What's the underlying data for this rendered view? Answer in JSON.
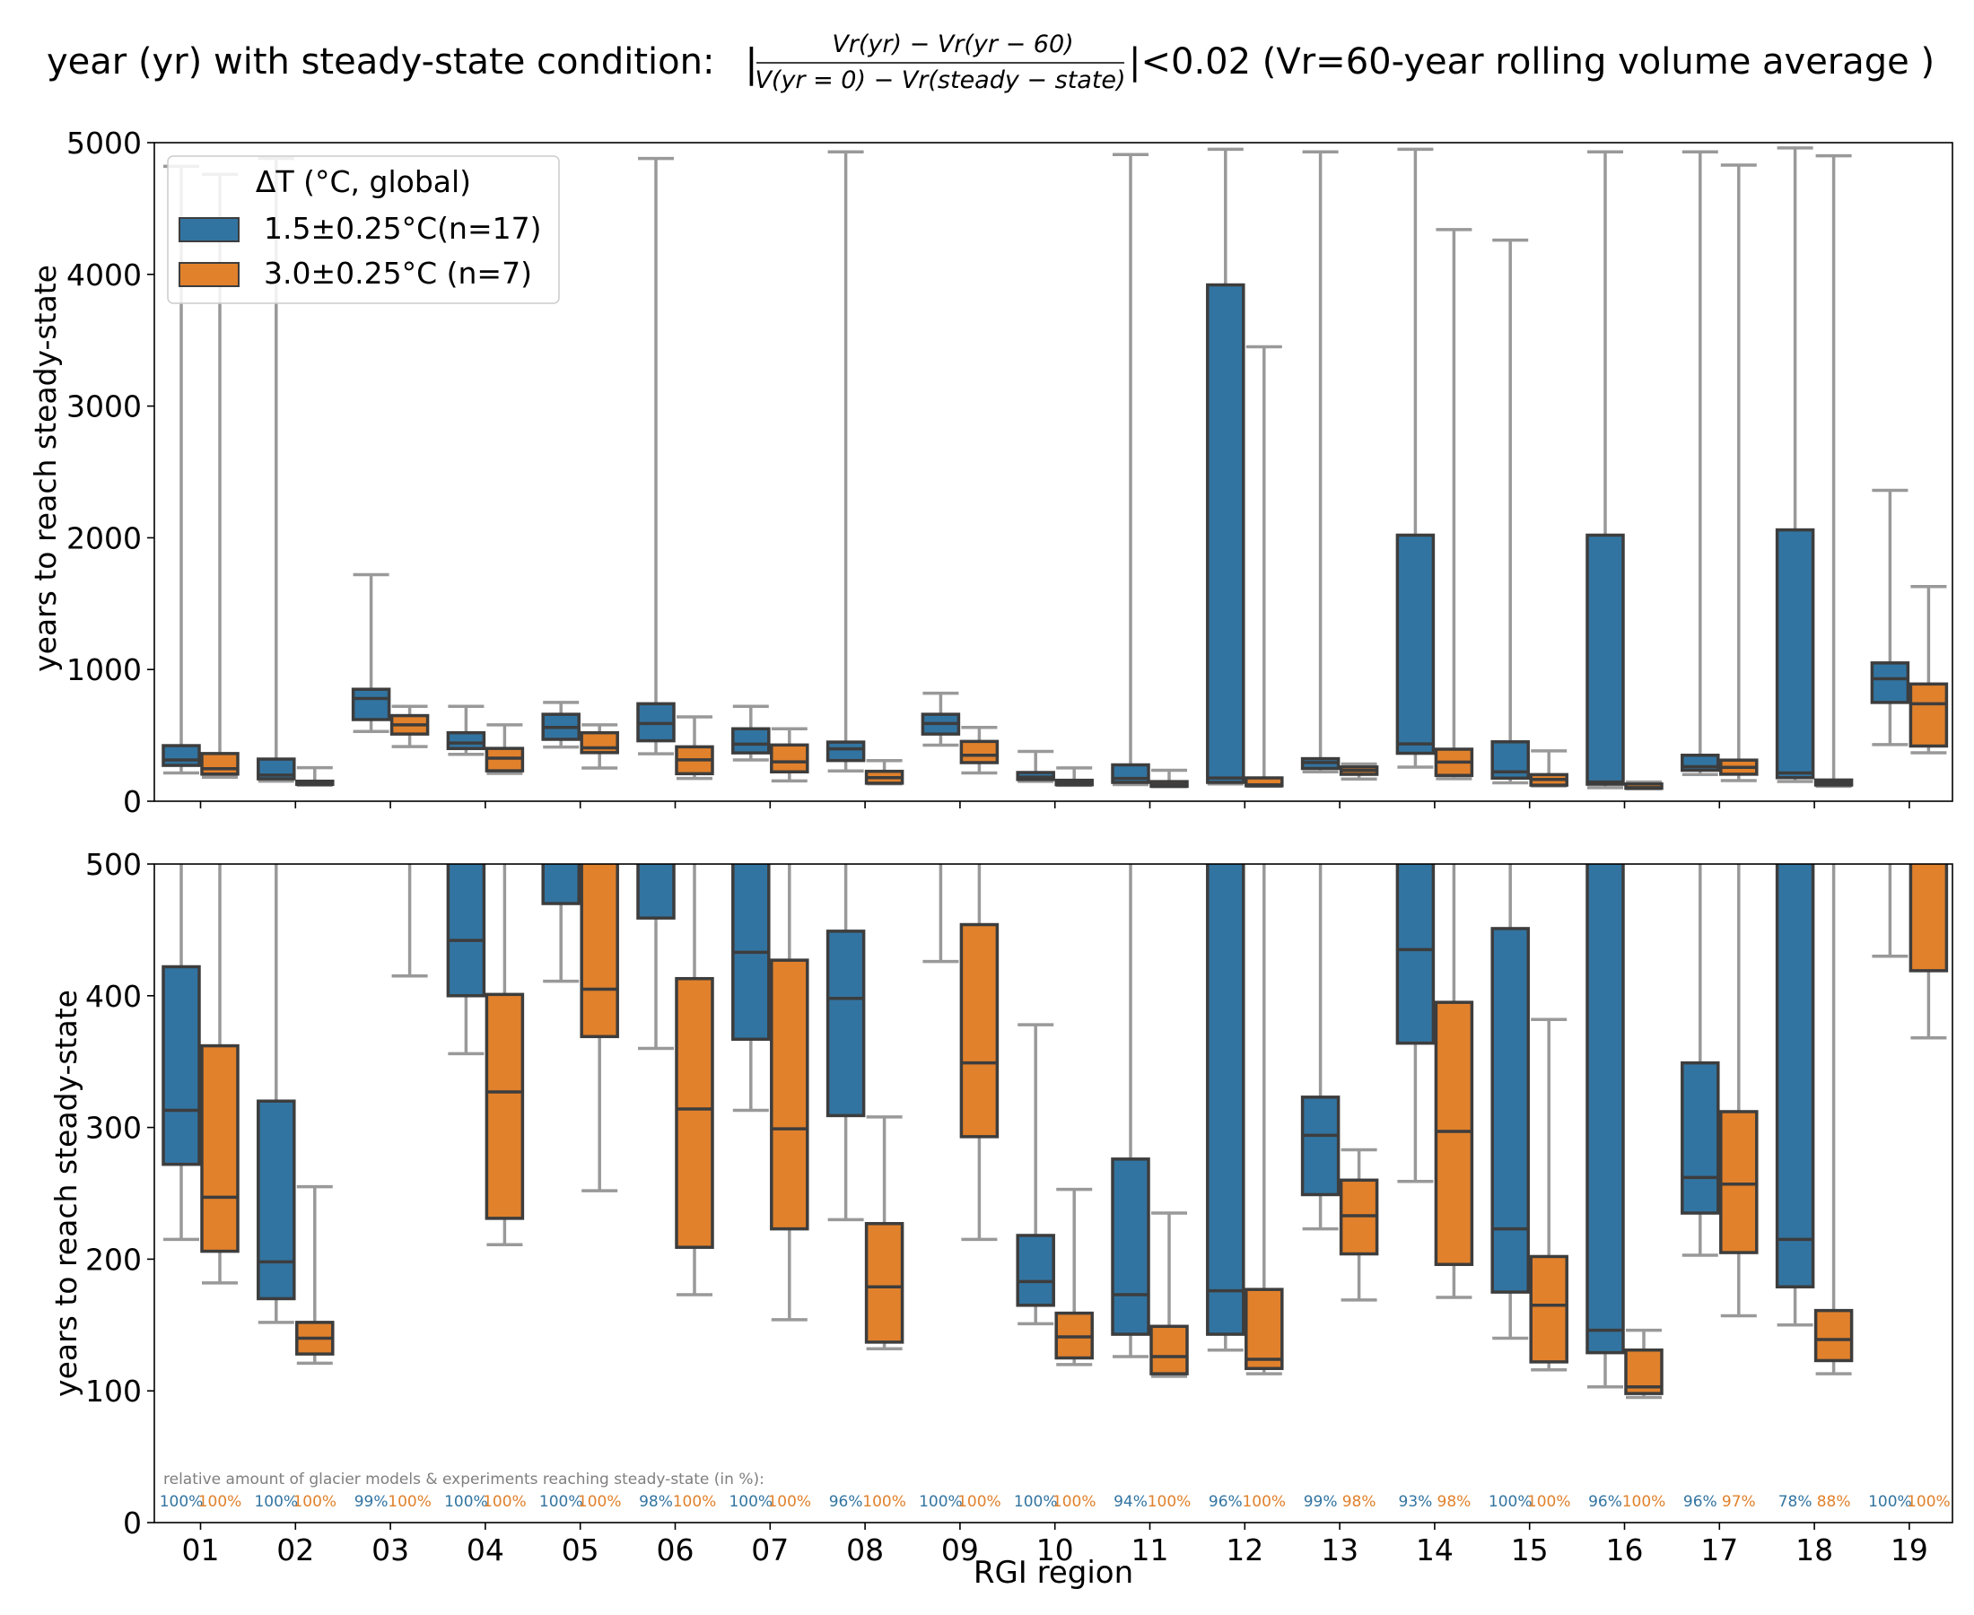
{
  "title": {
    "prefix": "year (yr) with steady-state condition:",
    "numerator": "Vr(yr) − Vr(yr − 60)",
    "denominator": "V(yr = 0) − Vr(steady − state)",
    "suffix": "|<0.02 (Vr=60-year rolling volume average )"
  },
  "legend": {
    "title": "ΔT (°C, global)",
    "entries": [
      {
        "label": "1.5±0.25°C(n=17)",
        "color": "#3274a1"
      },
      {
        "label": "3.0±0.25°C (n=7)",
        "color": "#e1812c"
      }
    ]
  },
  "colors": {
    "series_a": "#3274a1",
    "series_b": "#e1812c",
    "whisker": "#999999",
    "box_edge": "#3d3d3d",
    "pct_note": "#7f7f7f"
  },
  "xlabel": "RGI region",
  "ylabel_top": "years to reach steady-state",
  "ylabel_bottom": "years to reach steady-state",
  "pct_note": "relative amount of glacier models & experiments reaching steady-state (in %):",
  "chart_data": [
    {
      "type": "box",
      "panel": "top",
      "ylim": [
        0,
        5000
      ],
      "yticks": [
        "0",
        "1000",
        "2000",
        "3000",
        "4000",
        "5000"
      ],
      "categories": [
        "01",
        "02",
        "03",
        "04",
        "05",
        "06",
        "07",
        "08",
        "09",
        "10",
        "11",
        "12",
        "13",
        "14",
        "15",
        "16",
        "17",
        "18",
        "19"
      ],
      "series": [
        {
          "name": "1.5±0.25°C(n=17)",
          "color": "#3274a1",
          "boxes": [
            {
              "whislo": 215,
              "q1": 272,
              "med": 313,
              "q3": 422,
              "whishi": 4820
            },
            {
              "whislo": 152,
              "q1": 170,
              "med": 198,
              "q3": 320,
              "whishi": 4880
            },
            {
              "whislo": 530,
              "q1": 620,
              "med": 780,
              "q3": 850,
              "whishi": 1720
            },
            {
              "whislo": 356,
              "q1": 400,
              "med": 442,
              "q3": 520,
              "whishi": 720
            },
            {
              "whislo": 411,
              "q1": 470,
              "med": 560,
              "q3": 660,
              "whishi": 750
            },
            {
              "whislo": 360,
              "q1": 459,
              "med": 590,
              "q3": 740,
              "whishi": 4880
            },
            {
              "whislo": 313,
              "q1": 367,
              "med": 433,
              "q3": 550,
              "whishi": 720
            },
            {
              "whislo": 230,
              "q1": 309,
              "med": 398,
              "q3": 449,
              "whishi": 4930
            },
            {
              "whislo": 426,
              "q1": 510,
              "med": 590,
              "q3": 660,
              "whishi": 820
            },
            {
              "whislo": 151,
              "q1": 165,
              "med": 183,
              "q3": 218,
              "whishi": 378
            },
            {
              "whislo": 126,
              "q1": 143,
              "med": 173,
              "q3": 276,
              "whishi": 4910
            },
            {
              "whislo": 131,
              "q1": 143,
              "med": 176,
              "q3": 3920,
              "whishi": 4950
            },
            {
              "whislo": 223,
              "q1": 249,
              "med": 294,
              "q3": 323,
              "whishi": 4930
            },
            {
              "whislo": 259,
              "q1": 364,
              "med": 435,
              "q3": 2020,
              "whishi": 4950
            },
            {
              "whislo": 140,
              "q1": 175,
              "med": 223,
              "q3": 451,
              "whishi": 4260
            },
            {
              "whislo": 103,
              "q1": 129,
              "med": 146,
              "q3": 2020,
              "whishi": 4930
            },
            {
              "whislo": 203,
              "q1": 235,
              "med": 262,
              "q3": 349,
              "whishi": 4930
            },
            {
              "whislo": 150,
              "q1": 179,
              "med": 215,
              "q3": 2060,
              "whishi": 4960
            },
            {
              "whislo": 430,
              "q1": 750,
              "med": 930,
              "q3": 1050,
              "whishi": 2360
            }
          ]
        },
        {
          "name": "3.0±0.25°C (n=7)",
          "color": "#e1812c",
          "boxes": [
            {
              "whislo": 182,
              "q1": 206,
              "med": 247,
              "q3": 362,
              "whishi": 4760
            },
            {
              "whislo": 121,
              "q1": 128,
              "med": 140,
              "q3": 152,
              "whishi": 255
            },
            {
              "whislo": 415,
              "q1": 510,
              "med": 580,
              "q3": 650,
              "whishi": 720
            },
            {
              "whislo": 211,
              "q1": 231,
              "med": 327,
              "q3": 401,
              "whishi": 580
            },
            {
              "whislo": 252,
              "q1": 369,
              "med": 405,
              "q3": 520,
              "whishi": 580
            },
            {
              "whislo": 173,
              "q1": 209,
              "med": 314,
              "q3": 413,
              "whishi": 640
            },
            {
              "whislo": 154,
              "q1": 223,
              "med": 299,
              "q3": 427,
              "whishi": 550
            },
            {
              "whislo": 132,
              "q1": 137,
              "med": 179,
              "q3": 227,
              "whishi": 308
            },
            {
              "whislo": 215,
              "q1": 293,
              "med": 349,
              "q3": 454,
              "whishi": 560
            },
            {
              "whislo": 120,
              "q1": 125,
              "med": 141,
              "q3": 159,
              "whishi": 253
            },
            {
              "whislo": 111,
              "q1": 113,
              "med": 126,
              "q3": 149,
              "whishi": 235
            },
            {
              "whislo": 113,
              "q1": 117,
              "med": 124,
              "q3": 177,
              "whishi": 3450
            },
            {
              "whislo": 169,
              "q1": 204,
              "med": 233,
              "q3": 260,
              "whishi": 283
            },
            {
              "whislo": 171,
              "q1": 196,
              "med": 297,
              "q3": 395,
              "whishi": 4340
            },
            {
              "whislo": 116,
              "q1": 122,
              "med": 165,
              "q3": 202,
              "whishi": 382
            },
            {
              "whislo": 95,
              "q1": 98,
              "med": 103,
              "q3": 131,
              "whishi": 146
            },
            {
              "whislo": 157,
              "q1": 205,
              "med": 257,
              "q3": 312,
              "whishi": 4830
            },
            {
              "whislo": 113,
              "q1": 123,
              "med": 139,
              "q3": 161,
              "whishi": 4900
            },
            {
              "whislo": 368,
              "q1": 419,
              "med": 740,
              "q3": 890,
              "whishi": 1630
            }
          ]
        }
      ]
    },
    {
      "type": "box",
      "panel": "bottom",
      "ylim": [
        0,
        500
      ],
      "yticks": [
        "0",
        "100",
        "200",
        "300",
        "400",
        "500"
      ],
      "same_data_as": "top",
      "percent_reaching_steady_state": {
        "1.5±0.25°C(n=17)": [
          "100%",
          "100%",
          "99%",
          "100%",
          "100%",
          "98%",
          "100%",
          "96%",
          "100%",
          "100%",
          "94%",
          "96%",
          "99%",
          "93%",
          "100%",
          "96%",
          "96%",
          "78%",
          "100%"
        ],
        "3.0±0.25°C (n=7)": [
          "100%",
          "100%",
          "100%",
          "100%",
          "100%",
          "100%",
          "100%",
          "100%",
          "100%",
          "100%",
          "100%",
          "100%",
          "98%",
          "98%",
          "100%",
          "100%",
          "97%",
          "88%",
          "100%"
        ]
      }
    }
  ]
}
